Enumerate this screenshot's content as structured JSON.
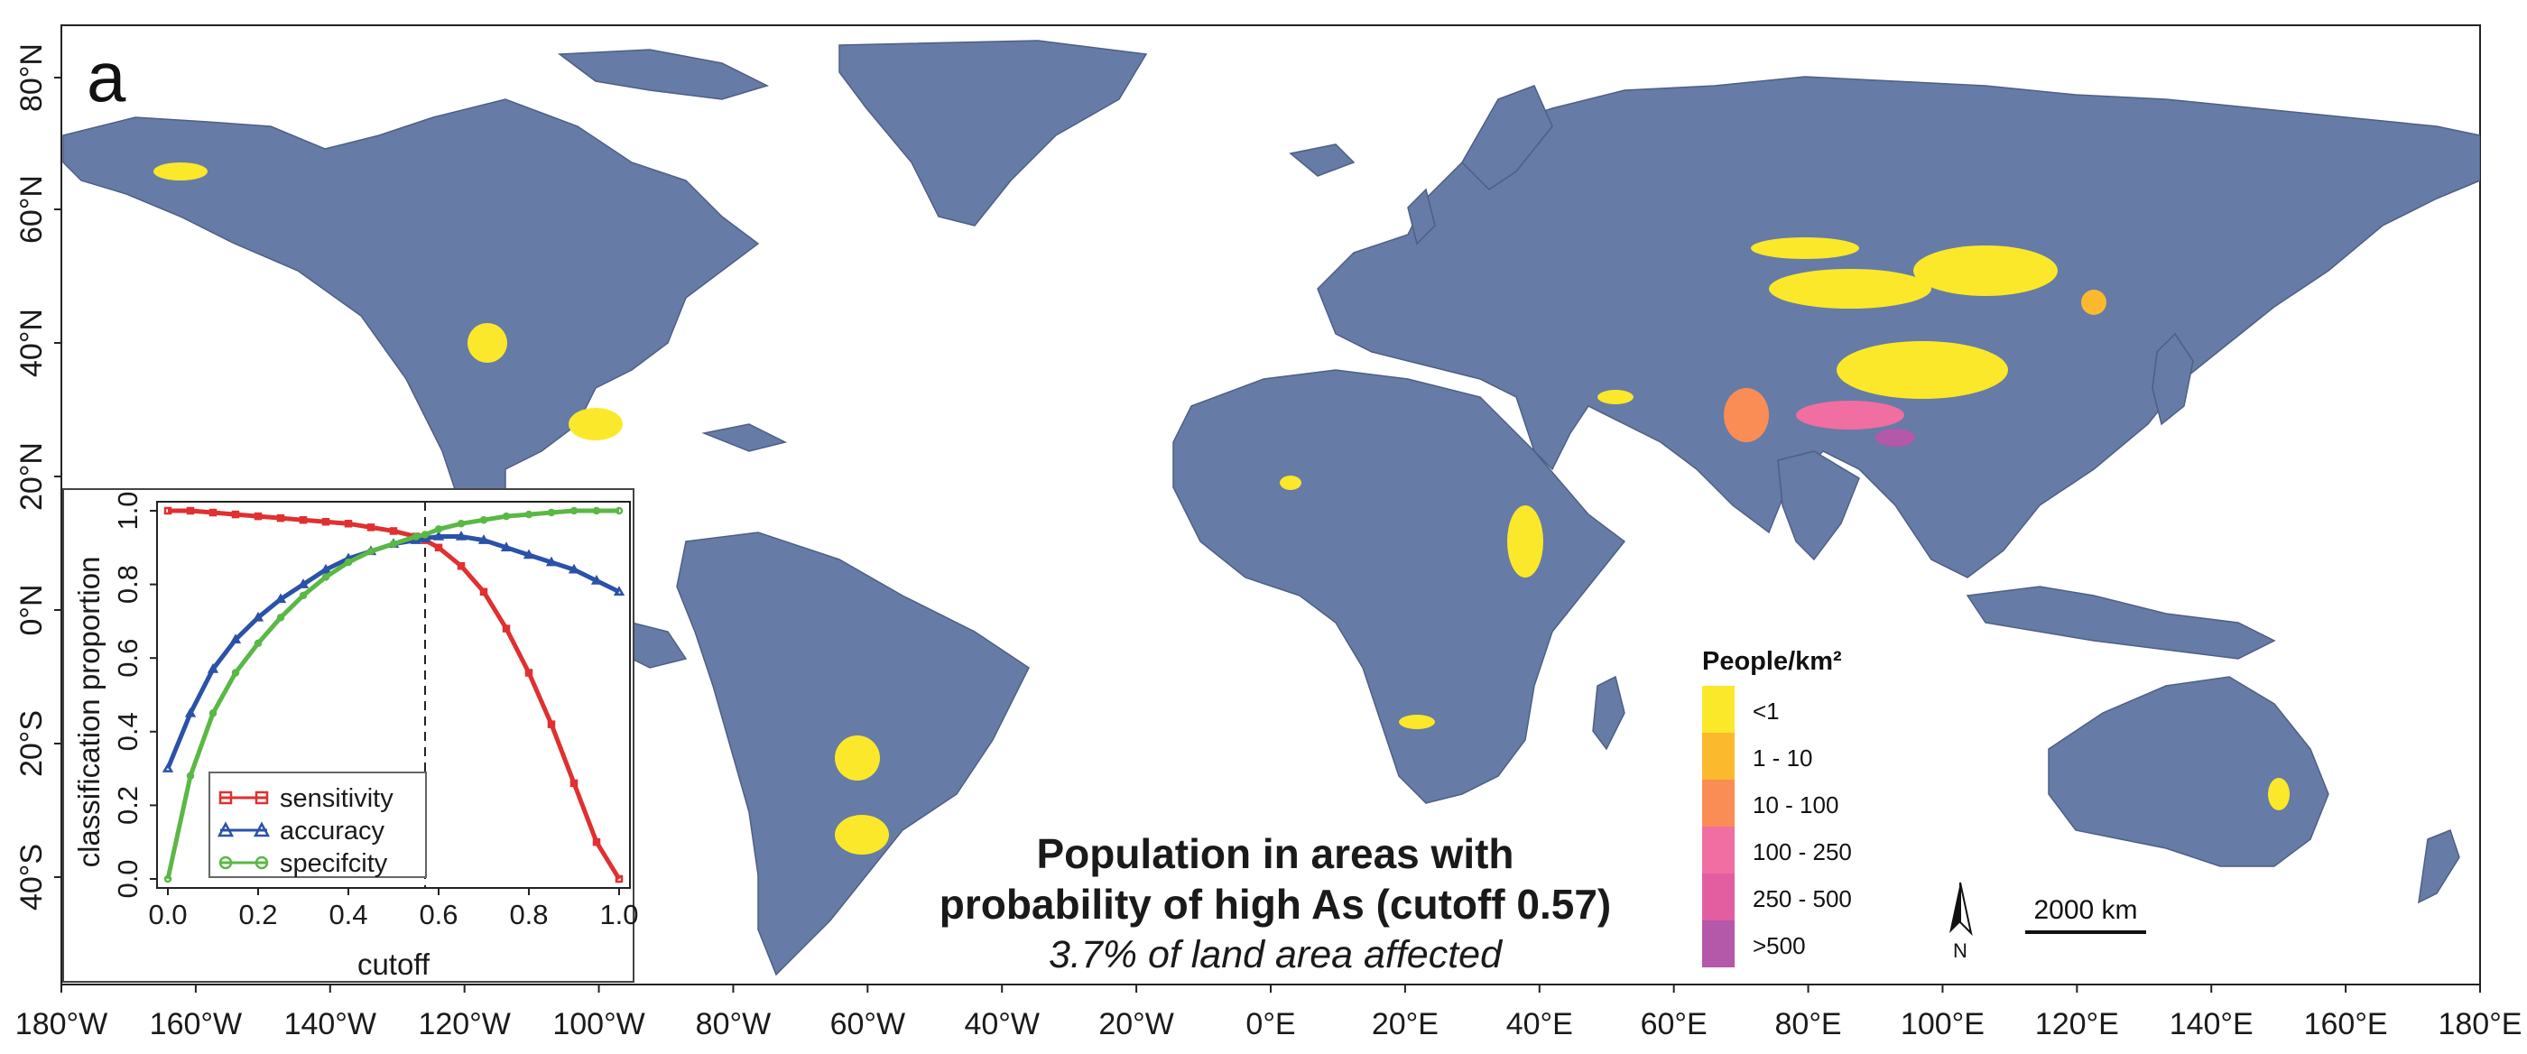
{
  "panel_label": "a",
  "title": {
    "line1": "Population in areas with",
    "line2": "probability of high As (cutoff 0.57)",
    "line3": "3.7% of land area affected"
  },
  "axes": {
    "lon_labels": [
      "180°W",
      "160°W",
      "140°W",
      "120°W",
      "100°W",
      "80°W",
      "60°W",
      "40°W",
      "20°W",
      "0°E",
      "20°E",
      "40°E",
      "60°E",
      "80°E",
      "100°E",
      "120°E",
      "140°E",
      "160°E",
      "180°E"
    ],
    "lat_labels": [
      "80°N",
      "60°N",
      "40°N",
      "20°N",
      "0°N",
      "20°S",
      "40°S"
    ]
  },
  "legend": {
    "title": "People/km²",
    "items": [
      {
        "label": "<1",
        "color": "#fbe82a"
      },
      {
        "label": "1 - 10",
        "color": "#fbba2e"
      },
      {
        "label": "10 - 100",
        "color": "#f98d55"
      },
      {
        "label": "100 - 250",
        "color": "#f06ea1"
      },
      {
        "label": "250 - 500",
        "color": "#e35ea0"
      },
      {
        "label": ">500",
        "color": "#b458a9"
      }
    ]
  },
  "scale_bar": {
    "label": "2000 km"
  },
  "north_arrow": {
    "label": "N"
  },
  "colors": {
    "land": "#667ba6",
    "ocean": "#ffffff",
    "borders": "#4f5f84",
    "sensitivity": "#e03030",
    "accuracy": "#2a52a8",
    "specificity": "#5ab845"
  },
  "chart_data": {
    "type": "line",
    "xlabel": "cutoff",
    "ylabel": "classification proportion",
    "xlim": [
      0.0,
      1.0
    ],
    "ylim": [
      0.0,
      1.0
    ],
    "x_ticks": [
      "0.0",
      "0.2",
      "0.4",
      "0.6",
      "0.8",
      "1.0"
    ],
    "y_ticks": [
      "0.0",
      "0.2",
      "0.4",
      "0.6",
      "0.8",
      "1.0"
    ],
    "vline": 0.57,
    "legend_placement": "bottom-left",
    "x": [
      0.0,
      0.05,
      0.1,
      0.15,
      0.2,
      0.25,
      0.3,
      0.35,
      0.4,
      0.45,
      0.5,
      0.55,
      0.57,
      0.6,
      0.65,
      0.7,
      0.75,
      0.8,
      0.85,
      0.9,
      0.95,
      1.0
    ],
    "series": [
      {
        "name": "sensitivity",
        "marker": "square",
        "values": [
          1.0,
          1.0,
          0.995,
          0.99,
          0.985,
          0.98,
          0.975,
          0.97,
          0.965,
          0.955,
          0.945,
          0.93,
          0.92,
          0.9,
          0.85,
          0.78,
          0.68,
          0.56,
          0.42,
          0.26,
          0.1,
          0.0
        ]
      },
      {
        "name": "accuracy",
        "marker": "triangle",
        "values": [
          0.3,
          0.45,
          0.57,
          0.65,
          0.71,
          0.76,
          0.8,
          0.84,
          0.87,
          0.89,
          0.91,
          0.92,
          0.925,
          0.93,
          0.93,
          0.92,
          0.9,
          0.88,
          0.86,
          0.84,
          0.81,
          0.78
        ]
      },
      {
        "name": "specifcity",
        "marker": "circle",
        "values": [
          0.0,
          0.28,
          0.45,
          0.56,
          0.64,
          0.71,
          0.77,
          0.82,
          0.86,
          0.89,
          0.91,
          0.93,
          0.935,
          0.95,
          0.965,
          0.975,
          0.985,
          0.99,
          0.995,
          1.0,
          1.0,
          1.0
        ]
      }
    ]
  }
}
